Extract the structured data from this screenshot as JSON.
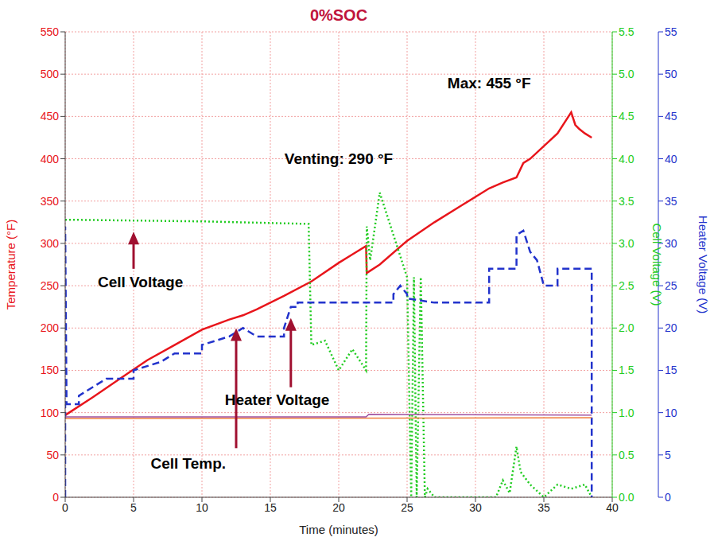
{
  "chart_data": {
    "type": "line",
    "title": "0%SOC",
    "x_label": "Time (minutes)",
    "y_label": "Temperature (°F)",
    "y2_label": "Cell Voltage (V)",
    "y3_label": "Heater Voltage (V)",
    "xlim": [
      0,
      40
    ],
    "xticks": [
      0,
      5,
      10,
      15,
      20,
      25,
      30,
      35,
      40
    ],
    "ylim": [
      0,
      550
    ],
    "yticks": [
      0,
      50,
      100,
      150,
      200,
      250,
      300,
      350,
      400,
      450,
      500,
      550
    ],
    "y2lim": [
      0,
      5.5
    ],
    "y2ticks": [
      {
        "value": 0,
        "label": "0.0"
      },
      0.5,
      {
        "value": 1,
        "label": "1.0"
      },
      1.5,
      {
        "value": 2,
        "label": "2.0"
      },
      2.5,
      {
        "value": 3,
        "label": "3.0"
      },
      3.5,
      {
        "value": 4,
        "label": "4.0"
      },
      4.5,
      {
        "value": 5,
        "label": "5.0"
      },
      5.5
    ],
    "y3lim": [
      0,
      55
    ],
    "y3ticks": [
      0,
      5,
      10,
      15,
      20,
      25,
      30,
      35,
      40,
      45,
      50,
      55
    ],
    "grid": true,
    "annotations": [
      {
        "text": "Max: 455 °F"
      },
      {
        "text": "Venting: 290 °F"
      }
    ],
    "series": [
      {
        "name": "Cell Temp.",
        "color": "#e8151b",
        "line_style": "solid",
        "x": [
          0,
          2,
          4,
          6,
          8,
          10,
          12,
          13,
          14,
          16,
          18,
          20,
          21,
          22,
          22.05,
          23,
          25,
          27,
          29,
          31,
          32,
          33,
          33.5,
          34,
          35,
          36,
          37,
          37.3,
          37.6,
          38,
          38.5
        ],
        "values": [
          97,
          118,
          140,
          162,
          180,
          198,
          210,
          215,
          222,
          238,
          255,
          277,
          287,
          297,
          265,
          275,
          303,
          325,
          345,
          365,
          372,
          378,
          395,
          400,
          415,
          430,
          455,
          440,
          435,
          430,
          425
        ]
      },
      {
        "name": "Cell Voltage",
        "color": "#22cc22",
        "line_style": "dotted",
        "axis": "y2",
        "x": [
          0,
          10,
          17.8,
          18,
          19,
          20,
          21,
          22,
          22.05,
          22.3,
          23,
          24,
          25,
          25.3,
          25.5,
          25.7,
          26,
          26.3,
          26.5,
          27,
          31.5,
          32,
          32.5,
          33,
          33.3,
          34,
          35,
          36,
          37,
          38,
          38.5
        ],
        "values": [
          3.28,
          3.26,
          3.23,
          1.8,
          1.85,
          1.5,
          1.75,
          1.5,
          3.2,
          2.8,
          3.6,
          3.1,
          2.6,
          0,
          2.6,
          0,
          2.6,
          0,
          0.1,
          0,
          0,
          0.2,
          0.05,
          0.6,
          0.3,
          0.15,
          0,
          0.15,
          0.1,
          0.15,
          0
        ]
      },
      {
        "name": "Heater Voltage",
        "color": "#2233cc",
        "line_style": "dashed",
        "axis": "y3",
        "x": [
          0,
          0,
          0.1,
          1,
          1,
          2,
          3,
          5,
          5,
          7,
          8,
          10,
          10,
          12,
          13,
          14,
          16,
          16,
          16.5,
          17,
          17,
          24,
          24,
          24.5,
          25,
          25,
          27,
          31,
          31,
          33,
          33,
          33.5,
          34,
          34.5,
          35,
          36,
          36,
          38.5,
          38.5
        ],
        "values": [
          0,
          32,
          11,
          11,
          12,
          13,
          14,
          14,
          15,
          16,
          17,
          17,
          18,
          19,
          20,
          19,
          19,
          20,
          22.5,
          22.5,
          23,
          23,
          24,
          25,
          24,
          23.5,
          23,
          23,
          27,
          27,
          31,
          31.5,
          29,
          28,
          25,
          25,
          27,
          27,
          0
        ]
      },
      {
        "color": "#f08040",
        "line_style": "solid",
        "x": [
          0,
          38.5
        ],
        "values": [
          93,
          94
        ]
      },
      {
        "color": "#a050a0",
        "line_style": "solid",
        "x": [
          0,
          22,
          22.2,
          38.5
        ],
        "values": [
          95,
          95,
          98,
          97
        ]
      }
    ]
  }
}
